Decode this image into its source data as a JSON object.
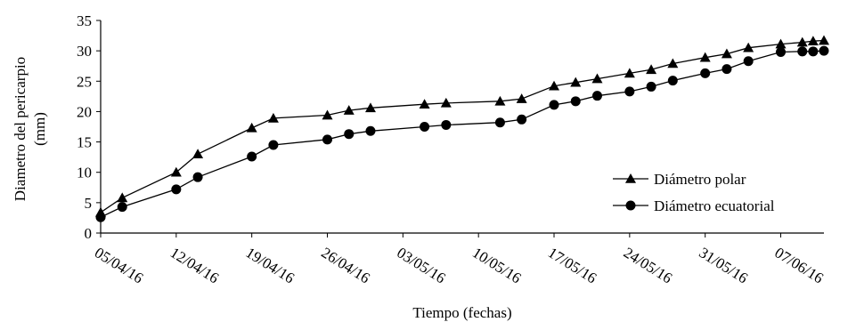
{
  "chart_data": {
    "type": "line",
    "title": "",
    "xlabel": "Tiempo (fechas)",
    "ylabel_lines": [
      "Diametro del pericarpio",
      "(mm)"
    ],
    "ylim": [
      0,
      35
    ],
    "y_ticks": [
      0,
      5,
      10,
      15,
      20,
      25,
      30,
      35
    ],
    "x_tick_labels": [
      "05/04/16",
      "12/04/16",
      "19/04/16",
      "26/04/16",
      "03/05/16",
      "10/05/16",
      "17/05/16",
      "24/05/16",
      "31/05/16",
      "07/06/16"
    ],
    "x_range": [
      "2016-04-04",
      "2016-06-10"
    ],
    "grid": false,
    "legend_position": "right",
    "series": [
      {
        "name": "Diámetro polar",
        "marker": "triangle",
        "points": [
          {
            "x": "2016-04-04",
            "y": 3.4
          },
          {
            "x": "2016-04-06",
            "y": 5.8
          },
          {
            "x": "2016-04-11",
            "y": 10.0
          },
          {
            "x": "2016-04-13",
            "y": 13.0
          },
          {
            "x": "2016-04-18",
            "y": 17.3
          },
          {
            "x": "2016-04-20",
            "y": 18.9
          },
          {
            "x": "2016-04-25",
            "y": 19.4
          },
          {
            "x": "2016-04-27",
            "y": 20.2
          },
          {
            "x": "2016-04-29",
            "y": 20.6
          },
          {
            "x": "2016-05-04",
            "y": 21.2
          },
          {
            "x": "2016-05-06",
            "y": 21.4
          },
          {
            "x": "2016-05-11",
            "y": 21.7
          },
          {
            "x": "2016-05-13",
            "y": 22.1
          },
          {
            "x": "2016-05-16",
            "y": 24.2
          },
          {
            "x": "2016-05-18",
            "y": 24.8
          },
          {
            "x": "2016-05-20",
            "y": 25.4
          },
          {
            "x": "2016-05-23",
            "y": 26.3
          },
          {
            "x": "2016-05-25",
            "y": 26.9
          },
          {
            "x": "2016-05-27",
            "y": 27.9
          },
          {
            "x": "2016-05-30",
            "y": 28.9
          },
          {
            "x": "2016-06-01",
            "y": 29.5
          },
          {
            "x": "2016-06-03",
            "y": 30.5
          },
          {
            "x": "2016-06-06",
            "y": 31.1
          },
          {
            "x": "2016-06-08",
            "y": 31.4
          },
          {
            "x": "2016-06-09",
            "y": 31.6
          },
          {
            "x": "2016-06-10",
            "y": 31.7
          }
        ]
      },
      {
        "name": "Diámetro ecuatorial",
        "marker": "circle",
        "points": [
          {
            "x": "2016-04-04",
            "y": 2.6
          },
          {
            "x": "2016-04-06",
            "y": 4.3
          },
          {
            "x": "2016-04-11",
            "y": 7.2
          },
          {
            "x": "2016-04-13",
            "y": 9.2
          },
          {
            "x": "2016-04-18",
            "y": 12.6
          },
          {
            "x": "2016-04-20",
            "y": 14.5
          },
          {
            "x": "2016-04-25",
            "y": 15.4
          },
          {
            "x": "2016-04-27",
            "y": 16.3
          },
          {
            "x": "2016-04-29",
            "y": 16.8
          },
          {
            "x": "2016-05-04",
            "y": 17.5
          },
          {
            "x": "2016-05-06",
            "y": 17.8
          },
          {
            "x": "2016-05-11",
            "y": 18.2
          },
          {
            "x": "2016-05-13",
            "y": 18.7
          },
          {
            "x": "2016-05-16",
            "y": 21.1
          },
          {
            "x": "2016-05-18",
            "y": 21.7
          },
          {
            "x": "2016-05-20",
            "y": 22.6
          },
          {
            "x": "2016-05-23",
            "y": 23.3
          },
          {
            "x": "2016-05-25",
            "y": 24.1
          },
          {
            "x": "2016-05-27",
            "y": 25.1
          },
          {
            "x": "2016-05-30",
            "y": 26.3
          },
          {
            "x": "2016-06-01",
            "y": 27.0
          },
          {
            "x": "2016-06-03",
            "y": 28.3
          },
          {
            "x": "2016-06-06",
            "y": 29.8
          },
          {
            "x": "2016-06-08",
            "y": 29.9
          },
          {
            "x": "2016-06-09",
            "y": 29.9
          },
          {
            "x": "2016-06-10",
            "y": 30.0
          }
        ]
      }
    ]
  }
}
